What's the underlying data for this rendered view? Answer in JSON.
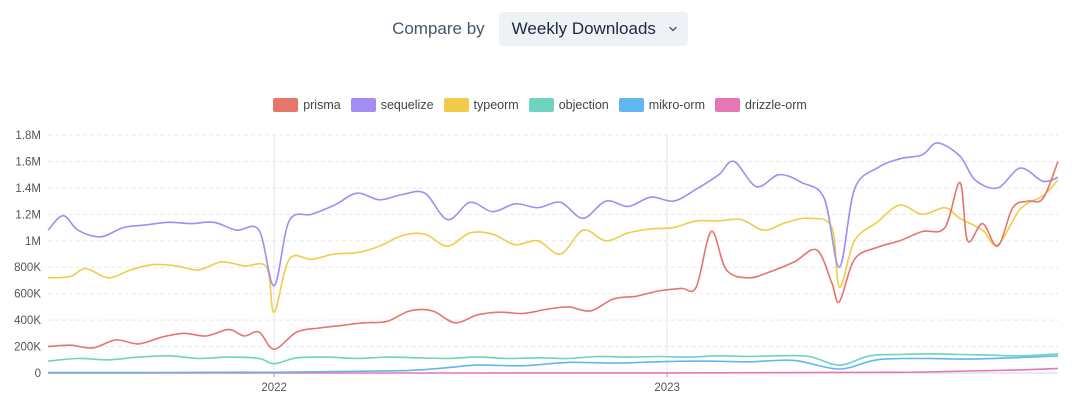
{
  "header": {
    "compare_label": "Compare by",
    "compare_value": "Weekly Downloads",
    "chevron_icon": "chevron-down-icon"
  },
  "colors": {
    "prisma": "#e5766b",
    "sequelize": "#a38cf2",
    "typeorm": "#f2cb4b",
    "objection": "#6ed3bf",
    "mikro-orm": "#62b6f0",
    "drizzle-orm": "#e776b5",
    "grid": "#e5e7eb",
    "axis_text": "#555555"
  },
  "chart_data": {
    "type": "line",
    "title": "",
    "xlabel": "",
    "ylabel": "",
    "x_range": [
      "2021-06-05",
      "2023-12-30"
    ],
    "x_ticks": [
      {
        "date": "2022-01-01",
        "label": "2022"
      },
      {
        "date": "2023-01-01",
        "label": "2023"
      }
    ],
    "ylim": [
      0,
      1800000
    ],
    "y_ticks": [
      {
        "value": 0,
        "label": "0"
      },
      {
        "value": 200000,
        "label": "200K"
      },
      {
        "value": 400000,
        "label": "400K"
      },
      {
        "value": 600000,
        "label": "600K"
      },
      {
        "value": 800000,
        "label": "800K"
      },
      {
        "value": 1000000,
        "label": "1M"
      },
      {
        "value": 1200000,
        "label": "1.2M"
      },
      {
        "value": 1400000,
        "label": "1.4M"
      },
      {
        "value": 1600000,
        "label": "1.6M"
      },
      {
        "value": 1800000,
        "label": "1.8M"
      }
    ],
    "legend_position": "top-center",
    "grid": true,
    "series": [
      {
        "name": "prisma",
        "points": [
          [
            "2021-06-05",
            200000
          ],
          [
            "2021-06-26",
            210000
          ],
          [
            "2021-07-17",
            190000
          ],
          [
            "2021-08-07",
            250000
          ],
          [
            "2021-08-28",
            220000
          ],
          [
            "2021-09-18",
            270000
          ],
          [
            "2021-10-09",
            300000
          ],
          [
            "2021-10-30",
            280000
          ],
          [
            "2021-11-20",
            330000
          ],
          [
            "2021-12-04",
            280000
          ],
          [
            "2021-12-18",
            310000
          ],
          [
            "2022-01-01",
            180000
          ],
          [
            "2022-01-22",
            310000
          ],
          [
            "2022-02-12",
            340000
          ],
          [
            "2022-03-05",
            360000
          ],
          [
            "2022-03-26",
            380000
          ],
          [
            "2022-04-16",
            390000
          ],
          [
            "2022-05-07",
            470000
          ],
          [
            "2022-05-28",
            470000
          ],
          [
            "2022-06-18",
            380000
          ],
          [
            "2022-07-09",
            440000
          ],
          [
            "2022-07-30",
            460000
          ],
          [
            "2022-08-20",
            450000
          ],
          [
            "2022-09-10",
            480000
          ],
          [
            "2022-10-01",
            500000
          ],
          [
            "2022-10-22",
            470000
          ],
          [
            "2022-11-12",
            560000
          ],
          [
            "2022-12-03",
            580000
          ],
          [
            "2022-12-24",
            620000
          ],
          [
            "2023-01-14",
            640000
          ],
          [
            "2023-01-28",
            650000
          ],
          [
            "2023-02-11",
            1070000
          ],
          [
            "2023-02-25",
            780000
          ],
          [
            "2023-03-18",
            720000
          ],
          [
            "2023-04-08",
            770000
          ],
          [
            "2023-04-29",
            840000
          ],
          [
            "2023-05-20",
            930000
          ],
          [
            "2023-06-03",
            680000
          ],
          [
            "2023-06-10",
            540000
          ],
          [
            "2023-06-24",
            860000
          ],
          [
            "2023-07-15",
            950000
          ],
          [
            "2023-08-05",
            1000000
          ],
          [
            "2023-08-26",
            1070000
          ],
          [
            "2023-09-16",
            1100000
          ],
          [
            "2023-09-30",
            1440000
          ],
          [
            "2023-10-07",
            1000000
          ],
          [
            "2023-10-21",
            1130000
          ],
          [
            "2023-11-04",
            960000
          ],
          [
            "2023-11-18",
            1250000
          ],
          [
            "2023-12-02",
            1300000
          ],
          [
            "2023-12-16",
            1320000
          ],
          [
            "2023-12-30",
            1600000
          ]
        ]
      },
      {
        "name": "sequelize",
        "points": [
          [
            "2021-06-05",
            1080000
          ],
          [
            "2021-06-19",
            1190000
          ],
          [
            "2021-07-03",
            1080000
          ],
          [
            "2021-07-24",
            1030000
          ],
          [
            "2021-08-14",
            1100000
          ],
          [
            "2021-09-04",
            1120000
          ],
          [
            "2021-09-25",
            1140000
          ],
          [
            "2021-10-16",
            1130000
          ],
          [
            "2021-11-06",
            1140000
          ],
          [
            "2021-11-27",
            1080000
          ],
          [
            "2021-12-18",
            1080000
          ],
          [
            "2022-01-01",
            660000
          ],
          [
            "2022-01-15",
            1150000
          ],
          [
            "2022-02-05",
            1200000
          ],
          [
            "2022-02-26",
            1270000
          ],
          [
            "2022-03-19",
            1360000
          ],
          [
            "2022-04-09",
            1310000
          ],
          [
            "2022-04-30",
            1350000
          ],
          [
            "2022-05-21",
            1360000
          ],
          [
            "2022-06-11",
            1160000
          ],
          [
            "2022-07-02",
            1290000
          ],
          [
            "2022-07-23",
            1220000
          ],
          [
            "2022-08-13",
            1280000
          ],
          [
            "2022-09-03",
            1250000
          ],
          [
            "2022-09-24",
            1290000
          ],
          [
            "2022-10-15",
            1170000
          ],
          [
            "2022-11-05",
            1300000
          ],
          [
            "2022-11-26",
            1260000
          ],
          [
            "2022-12-17",
            1330000
          ],
          [
            "2023-01-07",
            1300000
          ],
          [
            "2023-01-28",
            1390000
          ],
          [
            "2023-02-18",
            1500000
          ],
          [
            "2023-03-04",
            1600000
          ],
          [
            "2023-03-25",
            1410000
          ],
          [
            "2023-04-15",
            1500000
          ],
          [
            "2023-05-06",
            1440000
          ],
          [
            "2023-05-27",
            1320000
          ],
          [
            "2023-06-10",
            800000
          ],
          [
            "2023-06-24",
            1390000
          ],
          [
            "2023-07-15",
            1550000
          ],
          [
            "2023-08-05",
            1620000
          ],
          [
            "2023-08-26",
            1650000
          ],
          [
            "2023-09-09",
            1740000
          ],
          [
            "2023-09-30",
            1640000
          ],
          [
            "2023-10-14",
            1460000
          ],
          [
            "2023-11-04",
            1400000
          ],
          [
            "2023-11-25",
            1550000
          ],
          [
            "2023-12-16",
            1450000
          ],
          [
            "2023-12-30",
            1480000
          ]
        ]
      },
      {
        "name": "typeorm",
        "points": [
          [
            "2021-06-05",
            720000
          ],
          [
            "2021-06-26",
            730000
          ],
          [
            "2021-07-10",
            790000
          ],
          [
            "2021-07-31",
            720000
          ],
          [
            "2021-08-21",
            780000
          ],
          [
            "2021-09-11",
            820000
          ],
          [
            "2021-10-02",
            810000
          ],
          [
            "2021-10-23",
            780000
          ],
          [
            "2021-11-13",
            840000
          ],
          [
            "2021-12-04",
            810000
          ],
          [
            "2021-12-25",
            800000
          ],
          [
            "2022-01-01",
            460000
          ],
          [
            "2022-01-15",
            860000
          ],
          [
            "2022-02-05",
            860000
          ],
          [
            "2022-02-26",
            900000
          ],
          [
            "2022-03-19",
            910000
          ],
          [
            "2022-04-09",
            960000
          ],
          [
            "2022-04-30",
            1040000
          ],
          [
            "2022-05-21",
            1050000
          ],
          [
            "2022-06-11",
            960000
          ],
          [
            "2022-07-02",
            1060000
          ],
          [
            "2022-07-23",
            1050000
          ],
          [
            "2022-08-13",
            970000
          ],
          [
            "2022-09-03",
            1000000
          ],
          [
            "2022-09-24",
            900000
          ],
          [
            "2022-10-15",
            1080000
          ],
          [
            "2022-11-05",
            1000000
          ],
          [
            "2022-11-26",
            1060000
          ],
          [
            "2022-12-17",
            1090000
          ],
          [
            "2023-01-07",
            1100000
          ],
          [
            "2023-01-28",
            1150000
          ],
          [
            "2023-02-18",
            1150000
          ],
          [
            "2023-03-11",
            1160000
          ],
          [
            "2023-04-01",
            1080000
          ],
          [
            "2023-04-22",
            1140000
          ],
          [
            "2023-05-13",
            1170000
          ],
          [
            "2023-06-03",
            1100000
          ],
          [
            "2023-06-10",
            650000
          ],
          [
            "2023-06-24",
            1000000
          ],
          [
            "2023-07-15",
            1140000
          ],
          [
            "2023-08-05",
            1270000
          ],
          [
            "2023-08-26",
            1200000
          ],
          [
            "2023-09-16",
            1250000
          ],
          [
            "2023-09-30",
            1170000
          ],
          [
            "2023-10-21",
            1080000
          ],
          [
            "2023-11-04",
            970000
          ],
          [
            "2023-11-25",
            1240000
          ],
          [
            "2023-12-16",
            1340000
          ],
          [
            "2023-12-30",
            1460000
          ]
        ]
      },
      {
        "name": "objection",
        "points": [
          [
            "2021-06-05",
            90000
          ],
          [
            "2021-07-03",
            110000
          ],
          [
            "2021-07-31",
            100000
          ],
          [
            "2021-08-28",
            120000
          ],
          [
            "2021-09-25",
            130000
          ],
          [
            "2021-10-23",
            110000
          ],
          [
            "2021-11-20",
            120000
          ],
          [
            "2021-12-18",
            110000
          ],
          [
            "2022-01-01",
            70000
          ],
          [
            "2022-01-22",
            115000
          ],
          [
            "2022-02-19",
            120000
          ],
          [
            "2022-03-19",
            110000
          ],
          [
            "2022-04-16",
            120000
          ],
          [
            "2022-05-14",
            115000
          ],
          [
            "2022-06-11",
            110000
          ],
          [
            "2022-07-09",
            120000
          ],
          [
            "2022-08-06",
            110000
          ],
          [
            "2022-09-03",
            115000
          ],
          [
            "2022-10-01",
            110000
          ],
          [
            "2022-10-29",
            125000
          ],
          [
            "2022-11-26",
            120000
          ],
          [
            "2022-12-24",
            125000
          ],
          [
            "2023-01-21",
            120000
          ],
          [
            "2023-02-18",
            130000
          ],
          [
            "2023-03-18",
            125000
          ],
          [
            "2023-04-15",
            130000
          ],
          [
            "2023-05-13",
            125000
          ],
          [
            "2023-06-10",
            60000
          ],
          [
            "2023-07-08",
            130000
          ],
          [
            "2023-08-05",
            140000
          ],
          [
            "2023-09-02",
            145000
          ],
          [
            "2023-09-30",
            140000
          ],
          [
            "2023-10-28",
            135000
          ],
          [
            "2023-11-25",
            130000
          ],
          [
            "2023-12-30",
            145000
          ]
        ]
      },
      {
        "name": "mikro-orm",
        "points": [
          [
            "2021-06-05",
            3000
          ],
          [
            "2021-09-04",
            4000
          ],
          [
            "2021-12-04",
            6000
          ],
          [
            "2022-01-01",
            5000
          ],
          [
            "2022-03-05",
            12000
          ],
          [
            "2022-05-07",
            20000
          ],
          [
            "2022-06-11",
            40000
          ],
          [
            "2022-07-09",
            60000
          ],
          [
            "2022-08-20",
            55000
          ],
          [
            "2022-10-01",
            80000
          ],
          [
            "2022-11-12",
            75000
          ],
          [
            "2022-12-24",
            85000
          ],
          [
            "2023-02-04",
            90000
          ],
          [
            "2023-03-18",
            85000
          ],
          [
            "2023-04-29",
            95000
          ],
          [
            "2023-06-10",
            30000
          ],
          [
            "2023-07-15",
            100000
          ],
          [
            "2023-08-26",
            110000
          ],
          [
            "2023-10-07",
            105000
          ],
          [
            "2023-11-18",
            115000
          ],
          [
            "2023-12-30",
            130000
          ]
        ]
      },
      {
        "name": "drizzle-orm",
        "points": [
          [
            "2021-06-05",
            0
          ],
          [
            "2022-06-04",
            0
          ],
          [
            "2023-01-07",
            1000
          ],
          [
            "2023-05-06",
            3000
          ],
          [
            "2023-08-05",
            5000
          ],
          [
            "2023-10-07",
            15000
          ],
          [
            "2023-11-18",
            22000
          ],
          [
            "2023-12-30",
            35000
          ]
        ]
      }
    ]
  }
}
